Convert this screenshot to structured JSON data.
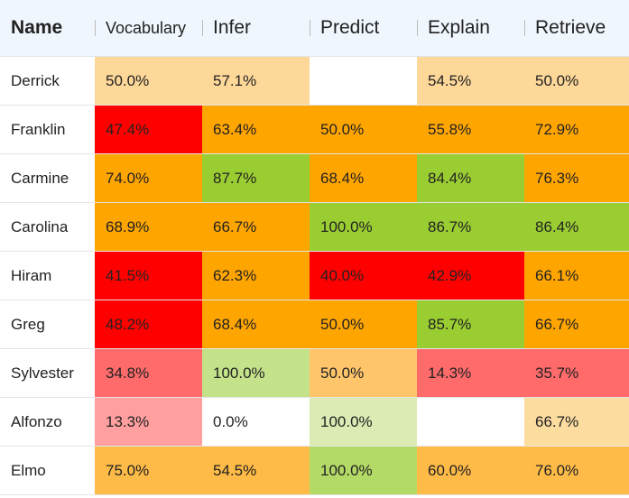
{
  "table": {
    "columns": [
      "Name",
      "Vocabulary",
      "Infer",
      "Predict",
      "Explain",
      "Retrieve"
    ],
    "rows": [
      {
        "name": "Derrick",
        "cells": [
          {
            "text": "50.0%",
            "color": "#fdd899"
          },
          {
            "text": "57.1%",
            "color": "#fdd899"
          },
          null,
          {
            "text": "54.5%",
            "color": "#fdd899"
          },
          {
            "text": "50.0%",
            "color": "#fdd899"
          }
        ]
      },
      {
        "name": "Franklin",
        "cells": [
          {
            "text": "47.4%",
            "color": "#ff0000"
          },
          {
            "text": "63.4%",
            "color": "#ffa500"
          },
          {
            "text": "50.0%",
            "color": "#ffa500"
          },
          {
            "text": "55.8%",
            "color": "#ffa500"
          },
          {
            "text": "72.9%",
            "color": "#ffa500"
          }
        ]
      },
      {
        "name": "Carmine",
        "cells": [
          {
            "text": "74.0%",
            "color": "#ffa500"
          },
          {
            "text": "87.7%",
            "color": "#9acd32"
          },
          {
            "text": "68.4%",
            "color": "#ffa500"
          },
          {
            "text": "84.4%",
            "color": "#9acd32"
          },
          {
            "text": "76.3%",
            "color": "#ffa500"
          }
        ]
      },
      {
        "name": "Carolina",
        "cells": [
          {
            "text": "68.9%",
            "color": "#ffa500"
          },
          {
            "text": "66.7%",
            "color": "#ffa500"
          },
          {
            "text": "100.0%",
            "color": "#9acd32"
          },
          {
            "text": "86.7%",
            "color": "#9acd32"
          },
          {
            "text": "86.4%",
            "color": "#9acd32"
          }
        ]
      },
      {
        "name": "Hiram",
        "cells": [
          {
            "text": "41.5%",
            "color": "#ff0000"
          },
          {
            "text": "62.3%",
            "color": "#ffa500"
          },
          {
            "text": "40.0%",
            "color": "#ff0000"
          },
          {
            "text": "42.9%",
            "color": "#ff0000"
          },
          {
            "text": "66.1%",
            "color": "#ffa500"
          }
        ]
      },
      {
        "name": "Greg",
        "cells": [
          {
            "text": "48.2%",
            "color": "#ff0000"
          },
          {
            "text": "68.4%",
            "color": "#ffa500"
          },
          {
            "text": "50.0%",
            "color": "#ffa500"
          },
          {
            "text": "85.7%",
            "color": "#9acd32"
          },
          {
            "text": "66.7%",
            "color": "#ffa500"
          }
        ]
      },
      {
        "name": "Sylvester",
        "cells": [
          {
            "text": "34.8%",
            "color": "#ff6b6b"
          },
          {
            "text": "100.0%",
            "color": "#c4e28a"
          },
          {
            "text": "50.0%",
            "color": "#ffc56b"
          },
          {
            "text": "14.3%",
            "color": "#ff6b6b"
          },
          {
            "text": "35.7%",
            "color": "#ff6b6b"
          }
        ]
      },
      {
        "name": "Alfonzo",
        "cells": [
          {
            "text": "13.3%",
            "color": "#ff9f9f"
          },
          {
            "text": "0.0%",
            "color": "#ffffff"
          },
          {
            "text": "100.0%",
            "color": "#dbebb3"
          },
          null,
          {
            "text": "66.7%",
            "color": "#fddc9f"
          }
        ]
      },
      {
        "name": "Elmo",
        "cells": [
          {
            "text": "75.0%",
            "color": "#ffbb47"
          },
          {
            "text": "54.5%",
            "color": "#ffbb47"
          },
          {
            "text": "100.0%",
            "color": "#b3d966"
          },
          {
            "text": "60.0%",
            "color": "#ffbb47"
          },
          {
            "text": "76.0%",
            "color": "#ffbb47"
          }
        ]
      }
    ]
  }
}
